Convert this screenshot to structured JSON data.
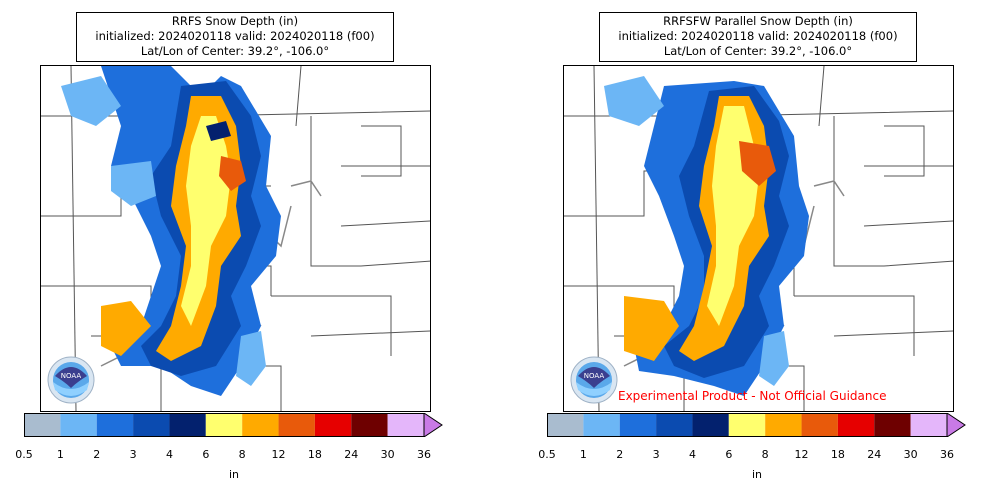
{
  "panels": [
    {
      "title_line1": "RRFS Snow Depth (in)",
      "title_line2": "initialized: 2024020118 valid: 2024020118 (f00)",
      "title_line3": "Lat/Lon of Center: 39.2°, -106.0°",
      "watermark": ""
    },
    {
      "title_line1": "RRFSFW Parallel Snow Depth (in)",
      "title_line2": "initialized: 2024020118 valid: 2024020118 (f00)",
      "title_line3": "Lat/Lon of Center: 39.2°, -106.0°",
      "watermark": "Experimental Product - Not Official Guidance"
    }
  ],
  "colorbar": {
    "ticks": [
      "0.5",
      "1",
      "2",
      "3",
      "4",
      "6",
      "8",
      "12",
      "18",
      "24",
      "30",
      "36"
    ],
    "colors": [
      "#a9bccf",
      "#6cb6f5",
      "#1e6fdc",
      "#0b4bb0",
      "#03216e",
      "#ffff6e",
      "#ffaa00",
      "#e85a0b",
      "#e60000",
      "#6e0000",
      "#e4b6fa"
    ],
    "extend_color": "#c97ae6",
    "unit": "in"
  },
  "logo": {
    "text": "NOAA",
    "icon": "noaa-logo-icon"
  }
}
